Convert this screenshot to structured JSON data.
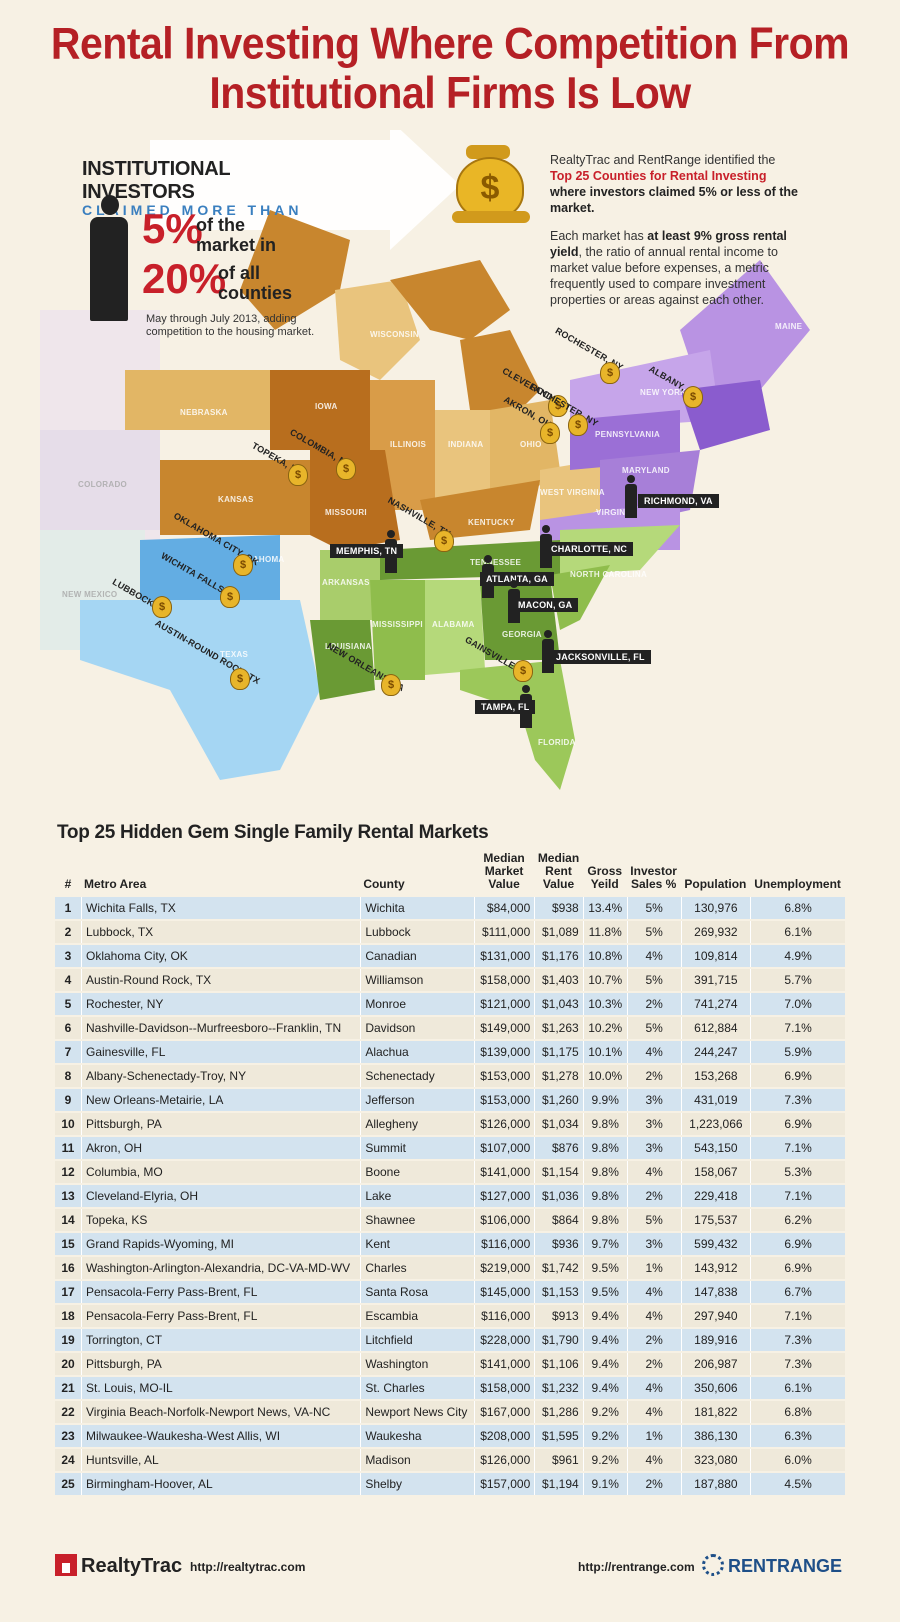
{
  "title": {
    "line1": "Rental Investing Where Competition From",
    "line2": "Institutional Firms Is Low"
  },
  "institutional": {
    "heading": "INSTITUTIONAL INVESTORS",
    "subheading": "CLAIMED MORE THAN",
    "stat1_value": "5%",
    "stat1_text_a": "of the",
    "stat1_text_b": "market in",
    "stat2_value": "20%",
    "stat2_text_a": "of all",
    "stat2_text_b": "counties",
    "note": "May through July 2013, adding competition to the housing market."
  },
  "intro": {
    "p1_a": "RealtyTrac and RentRange identified the ",
    "p1_red": "Top 25 Counties for Rental Investing",
    "p1_b": " where investors claimed 5% or less of the market.",
    "p2_a": "Each market has ",
    "p2_bold": "at least 9% gross rental yield",
    "p2_b": ", the ratio of annual rental income to market value before expenses, a metric frequently used to compare investment properties or areas against each other."
  },
  "map": {
    "state_labels": [
      "WISCONSIN",
      "IOWA",
      "NEBRASKA",
      "ILLINOIS",
      "INDIANA",
      "OHIO",
      "KANSAS",
      "MISSOURI",
      "KENTUCKY",
      "WEST VIRGINIA",
      "PENNSYLVANIA",
      "MAINE",
      "TENNESSEE",
      "ARKANSAS",
      "OKLAHOMA",
      "TEXAS",
      "MISSISSIPPI",
      "ALABAMA",
      "GEORGIA",
      "NORTH CAROLINA",
      "LOUISIANA",
      "FLORIDA",
      "NEW YORK",
      "VIRGINIA",
      "MARYLAND",
      "COLORADO",
      "NEW MEXICO"
    ],
    "markers": [
      "ROCHESTER, NY",
      "ALBANY, NY",
      "CLEVELAND, OH",
      "ROCHESTER, NY",
      "AKRON, OH",
      "COLOMBIA, MO",
      "TOPEKA, KS",
      "NASHVILLE, TN",
      "OKLAHOMA CITY, OK",
      "WICHITA FALLS, TX",
      "LUBBOCK, TX",
      "AUSTIN-ROUND ROCK, TX",
      "NEW ORLEANS, LA",
      "GAINSVILLE, FL"
    ],
    "person_labels": [
      "RICHMOND, VA",
      "CHARLOTTE, NC",
      "MEMPHIS, TN",
      "ATLANTA, GA",
      "MACON, GA",
      "JACKSONVILLE, FL",
      "TAMPA, FL"
    ]
  },
  "table": {
    "title": "Top 25 Hidden Gem Single Family Rental Markets",
    "headers": {
      "rank": "#",
      "metro": "Metro Area",
      "county": "County",
      "value": [
        "Median",
        "Market",
        "Value"
      ],
      "rent": [
        "Median",
        "Rent",
        "Value"
      ],
      "yield": [
        "Gross",
        "Yeild"
      ],
      "investor": [
        "Investor",
        "Sales %"
      ],
      "population": "Population",
      "unemployment": "Unemployment"
    },
    "rows": [
      [
        "1",
        "Wichita Falls, TX",
        "Wichita",
        "$84,000",
        "$938",
        "13.4%",
        "5%",
        "130,976",
        "6.8%"
      ],
      [
        "2",
        "Lubbock, TX",
        "Lubbock",
        "$111,000",
        "$1,089",
        "11.8%",
        "5%",
        "269,932",
        "6.1%"
      ],
      [
        "3",
        "Oklahoma City, OK",
        "Canadian",
        "$131,000",
        "$1,176",
        "10.8%",
        "4%",
        "109,814",
        "4.9%"
      ],
      [
        "4",
        "Austin-Round Rock, TX",
        "Williamson",
        "$158,000",
        "$1,403",
        "10.7%",
        "5%",
        "391,715",
        "5.7%"
      ],
      [
        "5",
        "Rochester, NY",
        "Monroe",
        "$121,000",
        "$1,043",
        "10.3%",
        "2%",
        "741,274",
        "7.0%"
      ],
      [
        "6",
        "Nashville-Davidson--Murfreesboro--Franklin, TN",
        "Davidson",
        "$149,000",
        "$1,263",
        "10.2%",
        "5%",
        "612,884",
        "7.1%"
      ],
      [
        "7",
        "Gainesville, FL",
        "Alachua",
        "$139,000",
        "$1,175",
        "10.1%",
        "4%",
        "244,247",
        "5.9%"
      ],
      [
        "8",
        "Albany-Schenectady-Troy, NY",
        "Schenectady",
        "$153,000",
        "$1,278",
        "10.0%",
        "2%",
        "153,268",
        "6.9%"
      ],
      [
        "9",
        "New Orleans-Metairie, LA",
        "Jefferson",
        "$153,000",
        "$1,260",
        "9.9%",
        "3%",
        "431,019",
        "7.3%"
      ],
      [
        "10",
        "Pittsburgh, PA",
        "Allegheny",
        "$126,000",
        "$1,034",
        "9.8%",
        "3%",
        "1,223,066",
        "6.9%"
      ],
      [
        "11",
        "Akron, OH",
        "Summit",
        "$107,000",
        "$876",
        "9.8%",
        "3%",
        "543,150",
        "7.1%"
      ],
      [
        "12",
        "Columbia, MO",
        "Boone",
        "$141,000",
        "$1,154",
        "9.8%",
        "4%",
        "158,067",
        "5.3%"
      ],
      [
        "13",
        "Cleveland-Elyria, OH",
        "Lake",
        "$127,000",
        "$1,036",
        "9.8%",
        "2%",
        "229,418",
        "7.1%"
      ],
      [
        "14",
        "Topeka, KS",
        "Shawnee",
        "$106,000",
        "$864",
        "9.8%",
        "5%",
        "175,537",
        "6.2%"
      ],
      [
        "15",
        "Grand Rapids-Wyoming, MI",
        "Kent",
        "$116,000",
        "$936",
        "9.7%",
        "3%",
        "599,432",
        "6.9%"
      ],
      [
        "16",
        "Washington-Arlington-Alexandria, DC-VA-MD-WV",
        "Charles",
        "$219,000",
        "$1,742",
        "9.5%",
        "1%",
        "143,912",
        "6.9%"
      ],
      [
        "17",
        "Pensacola-Ferry Pass-Brent, FL",
        "Santa Rosa",
        "$145,000",
        "$1,153",
        "9.5%",
        "4%",
        "147,838",
        "6.7%"
      ],
      [
        "18",
        "Pensacola-Ferry Pass-Brent, FL",
        "Escambia",
        "$116,000",
        "$913",
        "9.4%",
        "4%",
        "297,940",
        "7.1%"
      ],
      [
        "19",
        "Torrington, CT",
        "Litchfield",
        "$228,000",
        "$1,790",
        "9.4%",
        "2%",
        "189,916",
        "7.3%"
      ],
      [
        "20",
        "Pittsburgh, PA",
        "Washington",
        "$141,000",
        "$1,106",
        "9.4%",
        "2%",
        "206,987",
        "7.3%"
      ],
      [
        "21",
        "St. Louis, MO-IL",
        "St. Charles",
        "$158,000",
        "$1,232",
        "9.4%",
        "4%",
        "350,606",
        "6.1%"
      ],
      [
        "22",
        "Virginia Beach-Norfolk-Newport News, VA-NC",
        "Newport News City",
        "$167,000",
        "$1,286",
        "9.2%",
        "4%",
        "181,822",
        "6.8%"
      ],
      [
        "23",
        "Milwaukee-Waukesha-West Allis, WI",
        "Waukesha",
        "$208,000",
        "$1,595",
        "9.2%",
        "1%",
        "386,130",
        "6.3%"
      ],
      [
        "24",
        "Huntsville, AL",
        "Madison",
        "$126,000",
        "$961",
        "9.2%",
        "4%",
        "323,080",
        "6.0%"
      ],
      [
        "25",
        "Birmingham-Hoover, AL",
        "Shelby",
        "$157,000",
        "$1,194",
        "9.1%",
        "2%",
        "187,880",
        "4.5%"
      ]
    ]
  },
  "footer": {
    "realtytrac": "RealtyTrac",
    "realtytrac_url": "http://realtytrac.com",
    "rentrange_url": "http://rentrange.com",
    "rentrange": "RENTRANGE"
  },
  "colors": {
    "title_red": "#b52025",
    "midwest": "#c9a15a",
    "northeast": "#a77fd8",
    "south": "#8fbd4c",
    "texas": "#7fc4ea",
    "row_blue": "#d3e3ef",
    "row_beige": "#efe9da"
  }
}
